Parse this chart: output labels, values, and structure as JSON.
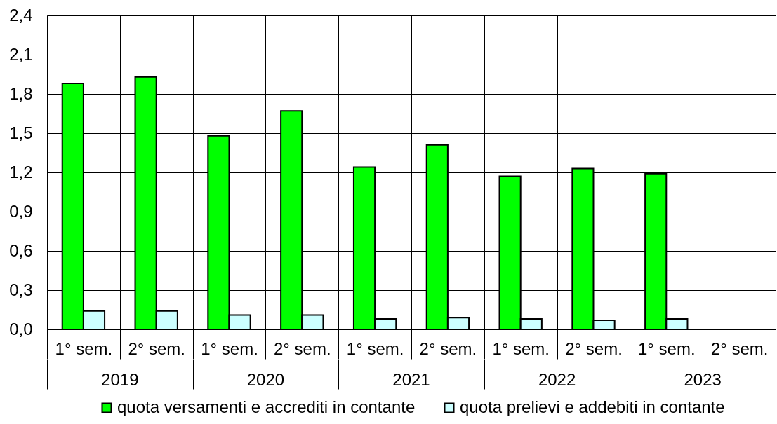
{
  "chart_data": {
    "type": "bar",
    "categories": [
      "1° sem.",
      "2° sem.",
      "1° sem.",
      "2° sem.",
      "1° sem.",
      "2° sem.",
      "1° sem.",
      "2° sem.",
      "1° sem.",
      "2° sem."
    ],
    "series": [
      {
        "name": "quota versamenti e accrediti in contante",
        "color": "#00ff00",
        "values": [
          1.88,
          1.93,
          1.48,
          1.67,
          1.24,
          1.41,
          1.17,
          1.23,
          1.19,
          null
        ]
      },
      {
        "name": "quota prelievi e addebiti in contante",
        "color": "#ccffff",
        "values": [
          0.14,
          0.14,
          0.11,
          0.11,
          0.08,
          0.09,
          0.08,
          0.07,
          0.08,
          null
        ]
      }
    ],
    "ylim": [
      0,
      2.4
    ],
    "yticks": [
      {
        "value": 0,
        "label": "0,0"
      },
      {
        "value": 0.3,
        "label": "0,3"
      },
      {
        "value": 0.6,
        "label": "0,6"
      },
      {
        "value": 0.9,
        "label": "0,9"
      },
      {
        "value": 1.2,
        "label": "1,2"
      },
      {
        "value": 1.5,
        "label": "1,5"
      },
      {
        "value": 1.8,
        "label": "1,8"
      },
      {
        "value": 2.1,
        "label": "2,1"
      },
      {
        "value": 2.4,
        "label": "2,4"
      }
    ],
    "grid": true,
    "legend": "bottom",
    "annotations": [
      "2019",
      "2020",
      "2021",
      "2022",
      "2023"
    ]
  }
}
